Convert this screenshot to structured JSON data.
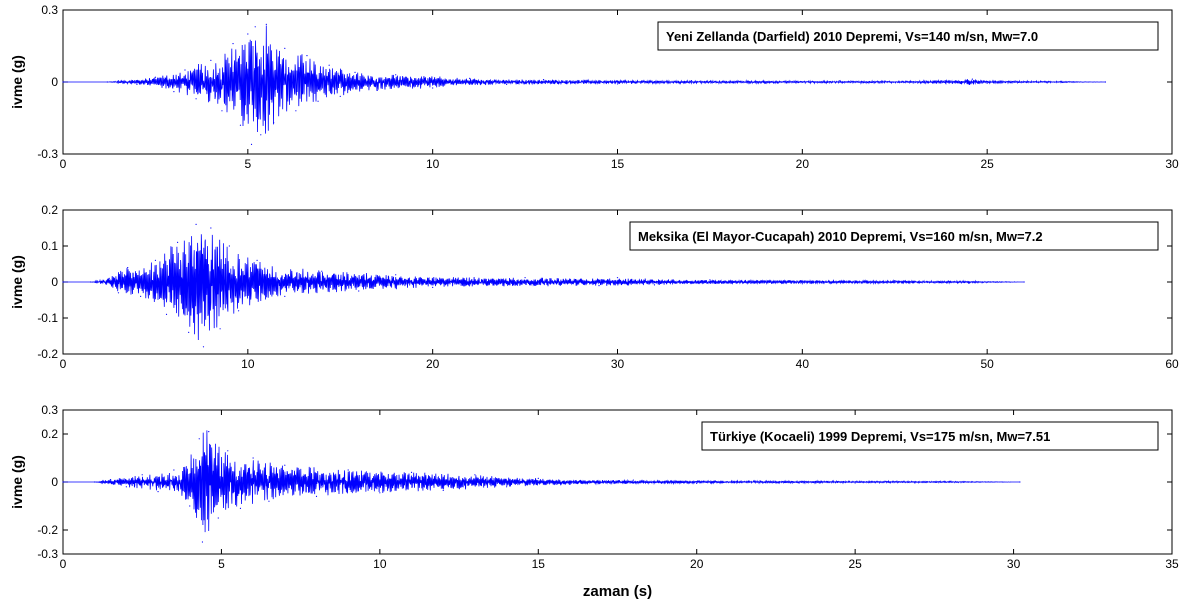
{
  "chart_data": [
    {
      "type": "line",
      "title": "",
      "ylabel": "ivme (g)",
      "xlabel": "",
      "xlim": [
        0,
        30
      ],
      "ylim": [
        -0.3,
        0.3
      ],
      "xticks": [
        "0",
        "5",
        "10",
        "15",
        "20",
        "25",
        "30"
      ],
      "yticks": [
        "0.3",
        "0",
        "-0.3"
      ],
      "legend": "Yeni Zellanda (Darfield) 2010 Depremi, Vs=140 m/sn, Mw=7.0",
      "legend_position": "top-right",
      "line_color": "#0000ff",
      "series": [
        {
          "values": [
            [
              0,
              0
            ],
            [
              1.2,
              0
            ],
            [
              1.5,
              0.005
            ],
            [
              2.0,
              -0.01
            ],
            [
              2.5,
              0.02
            ],
            [
              3.0,
              -0.04
            ],
            [
              3.3,
              0.05
            ],
            [
              3.6,
              -0.07
            ],
            [
              4.0,
              0.09
            ],
            [
              4.3,
              -0.12
            ],
            [
              4.6,
              0.16
            ],
            [
              4.8,
              -0.18
            ],
            [
              5.0,
              0.2
            ],
            [
              5.1,
              -0.26
            ],
            [
              5.2,
              0.23
            ],
            [
              5.35,
              -0.22
            ],
            [
              5.5,
              0.24
            ],
            [
              5.7,
              -0.17
            ],
            [
              6.0,
              0.14
            ],
            [
              6.3,
              -0.12
            ],
            [
              6.6,
              0.11
            ],
            [
              6.9,
              -0.08
            ],
            [
              7.2,
              0.07
            ],
            [
              7.5,
              -0.06
            ],
            [
              7.9,
              0.04
            ],
            [
              8.5,
              -0.035
            ],
            [
              9.0,
              0.03
            ],
            [
              10,
              -0.025
            ],
            [
              11,
              0.015
            ],
            [
              12,
              -0.01
            ],
            [
              13,
              0.01
            ],
            [
              15,
              -0.008
            ],
            [
              17,
              0.006
            ],
            [
              19,
              -0.005
            ],
            [
              21,
              0.005
            ],
            [
              23,
              -0.004
            ],
            [
              24.6,
              0.012
            ],
            [
              25,
              -0.005
            ],
            [
              27,
              0.003
            ],
            [
              28.2,
              0
            ]
          ]
        }
      ]
    },
    {
      "type": "line",
      "title": "",
      "ylabel": "ivme (g)",
      "xlabel": "",
      "xlim": [
        0,
        60
      ],
      "ylim": [
        -0.2,
        0.2
      ],
      "xticks": [
        "0",
        "10",
        "20",
        "30",
        "40",
        "50",
        "60"
      ],
      "yticks": [
        "0.2",
        "0.1",
        "0",
        "-0.1",
        "-0.2"
      ],
      "legend": "Meksika (El Mayor-Cucapah) 2010 Depremi, Vs=160 m/sn, Mw=7.2",
      "legend_position": "top-right",
      "line_color": "#0000ff",
      "series": [
        {
          "values": [
            [
              0,
              0
            ],
            [
              1.5,
              0
            ],
            [
              2.5,
              0.01
            ],
            [
              3.0,
              -0.03
            ],
            [
              3.5,
              0.04
            ],
            [
              4.2,
              -0.04
            ],
            [
              5.0,
              0.06
            ],
            [
              5.6,
              -0.09
            ],
            [
              6.2,
              0.11
            ],
            [
              6.8,
              -0.14
            ],
            [
              7.2,
              0.16
            ],
            [
              7.6,
              -0.18
            ],
            [
              8.0,
              0.15
            ],
            [
              8.5,
              -0.13
            ],
            [
              9.0,
              0.1
            ],
            [
              9.5,
              -0.08
            ],
            [
              10.5,
              0.06
            ],
            [
              12,
              -0.04
            ],
            [
              14,
              0.03
            ],
            [
              16,
              -0.025
            ],
            [
              18,
              0.02
            ],
            [
              20,
              -0.015
            ],
            [
              25,
              0.012
            ],
            [
              29,
              -0.01
            ],
            [
              30,
              0.012
            ],
            [
              32,
              -0.008
            ],
            [
              35,
              0.006
            ],
            [
              40,
              -0.005
            ],
            [
              45,
              0.004
            ],
            [
              49,
              -0.003
            ],
            [
              52,
              0
            ]
          ]
        }
      ]
    },
    {
      "type": "line",
      "title": "",
      "ylabel": "ivme (g)",
      "xlabel": "zaman (s)",
      "xlim": [
        0,
        35
      ],
      "ylim": [
        -0.3,
        0.3
      ],
      "xticks": [
        "0",
        "5",
        "10",
        "15",
        "20",
        "25",
        "30",
        "35"
      ],
      "yticks": [
        "0.3",
        "0.2",
        "0",
        "-0.2",
        "-0.3"
      ],
      "legend": "Türkiye (Kocaeli) 1999 Depremi, Vs=175 m/sn, Mw=7.51",
      "legend_position": "top-right",
      "line_color": "#0000ff",
      "series": [
        {
          "values": [
            [
              0,
              0
            ],
            [
              1.0,
              0
            ],
            [
              1.5,
              0.01
            ],
            [
              2.0,
              -0.02
            ],
            [
              2.5,
              0.03
            ],
            [
              3.0,
              -0.04
            ],
            [
              3.5,
              0.05
            ],
            [
              4.0,
              -0.1
            ],
            [
              4.3,
              0.18
            ],
            [
              4.4,
              -0.25
            ],
            [
              4.6,
              0.21
            ],
            [
              4.9,
              -0.15
            ],
            [
              5.2,
              0.13
            ],
            [
              5.6,
              -0.11
            ],
            [
              6.0,
              0.1
            ],
            [
              6.5,
              -0.08
            ],
            [
              7.0,
              0.07
            ],
            [
              8.0,
              -0.06
            ],
            [
              9.0,
              0.05
            ],
            [
              10,
              -0.045
            ],
            [
              11,
              0.04
            ],
            [
              12,
              -0.035
            ],
            [
              13,
              0.03
            ],
            [
              14,
              -0.02
            ],
            [
              15,
              0.015
            ],
            [
              16,
              -0.01
            ],
            [
              18,
              0.008
            ],
            [
              20,
              -0.006
            ],
            [
              22,
              0.005
            ],
            [
              25,
              -0.004
            ],
            [
              28,
              0.003
            ],
            [
              30.2,
              0
            ]
          ]
        }
      ]
    }
  ]
}
